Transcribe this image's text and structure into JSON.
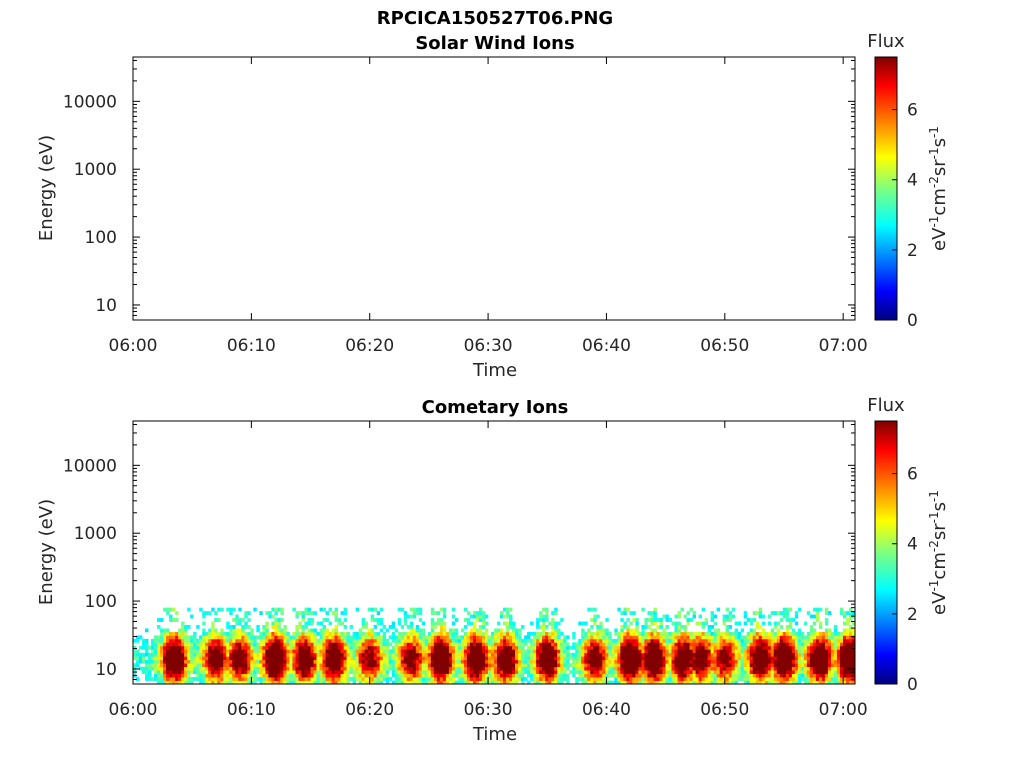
{
  "figure": {
    "title_line1": "RPCICA150527T06.PNG"
  },
  "chart_data": [
    {
      "type": "heatmap",
      "title": "Solar Wind Ions",
      "xlabel": "Time",
      "ylabel": "Energy (eV)",
      "x_ticks": [
        "06:00",
        "06:10",
        "06:20",
        "06:30",
        "06:40",
        "06:50",
        "07:00"
      ],
      "x_range_minutes": [
        0,
        61
      ],
      "y_scale": "log",
      "y_ticks": [
        "10",
        "100",
        "1000",
        "10000"
      ],
      "y_range": [
        6,
        45000
      ],
      "colorbar": {
        "title": "Flux",
        "unit_label": "eV-1cm-2sr-1s-1",
        "ticks": [
          "0",
          "2",
          "4",
          "6"
        ],
        "range": [
          0,
          7.5
        ],
        "colormap": "jet"
      },
      "data": []
    },
    {
      "type": "heatmap",
      "title": "Cometary Ions",
      "xlabel": "Time",
      "ylabel": "Energy (eV)",
      "x_ticks": [
        "06:00",
        "06:10",
        "06:20",
        "06:30",
        "06:40",
        "06:50",
        "07:00"
      ],
      "x_range_minutes": [
        0,
        61
      ],
      "y_scale": "log",
      "y_ticks": [
        "10",
        "100",
        "1000",
        "10000"
      ],
      "y_range": [
        6,
        45000
      ],
      "colorbar": {
        "title": "Flux",
        "unit_label": "eV-1cm-2sr-1s-1",
        "ticks": [
          "0",
          "2",
          "4",
          "6"
        ],
        "range": [
          0,
          7.5
        ],
        "colormap": "jet"
      },
      "energy_range_observed": [
        6,
        80
      ],
      "flux_peaks": [
        {
          "time_min": 3.5,
          "flux": 7.0
        },
        {
          "time_min": 7.0,
          "flux": 6.0
        },
        {
          "time_min": 9.0,
          "flux": 5.5
        },
        {
          "time_min": 12.0,
          "flux": 7.2
        },
        {
          "time_min": 14.5,
          "flux": 6.2
        },
        {
          "time_min": 17.0,
          "flux": 6.5
        },
        {
          "time_min": 20.0,
          "flux": 5.0
        },
        {
          "time_min": 23.5,
          "flux": 5.2
        },
        {
          "time_min": 26.0,
          "flux": 7.0
        },
        {
          "time_min": 29.0,
          "flux": 6.8
        },
        {
          "time_min": 31.5,
          "flux": 6.2
        },
        {
          "time_min": 35.0,
          "flux": 6.5
        },
        {
          "time_min": 39.0,
          "flux": 5.5
        },
        {
          "time_min": 42.0,
          "flux": 7.0
        },
        {
          "time_min": 44.0,
          "flux": 6.8
        },
        {
          "time_min": 46.5,
          "flux": 6.3
        },
        {
          "time_min": 48.0,
          "flux": 5.8
        },
        {
          "time_min": 50.0,
          "flux": 5.0
        },
        {
          "time_min": 53.0,
          "flux": 6.5
        },
        {
          "time_min": 55.0,
          "flux": 7.0
        },
        {
          "time_min": 58.0,
          "flux": 6.8
        },
        {
          "time_min": 60.5,
          "flux": 7.2
        }
      ]
    }
  ]
}
